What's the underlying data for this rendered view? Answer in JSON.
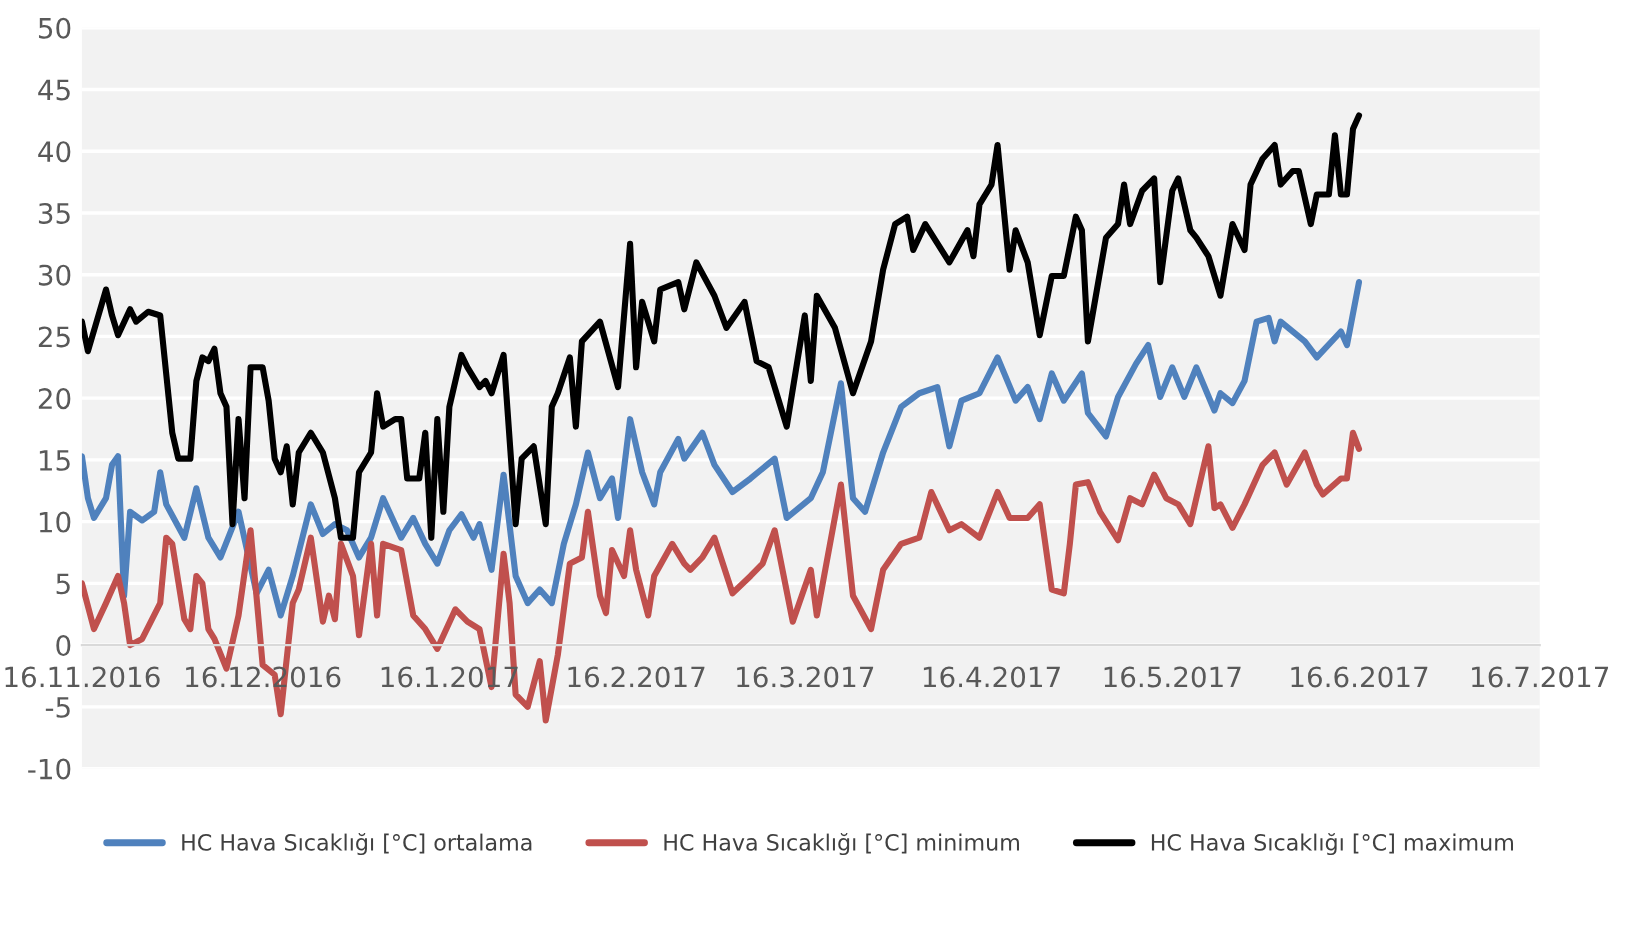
{
  "chart_data": {
    "type": "line",
    "xlim": [
      "2016-11-16",
      "2017-07-16"
    ],
    "xticks": [
      {
        "value": "2016-11-16",
        "label": "16.11.2016"
      },
      {
        "value": "2016-12-16",
        "label": "16.12.2016"
      },
      {
        "value": "2017-01-16",
        "label": "16.1.2017"
      },
      {
        "value": "2017-02-16",
        "label": "16.2.2017"
      },
      {
        "value": "2017-03-16",
        "label": "16.3.2017"
      },
      {
        "value": "2017-04-16",
        "label": "16.4.2017"
      },
      {
        "value": "2017-05-16",
        "label": "16.5.2017"
      },
      {
        "value": "2017-06-16",
        "label": "16.6.2017"
      },
      {
        "value": "2017-07-16",
        "label": "16.7.2017"
      }
    ],
    "ylim": [
      -10,
      50
    ],
    "yticks": [
      -10,
      -5,
      0,
      5,
      10,
      15,
      20,
      25,
      30,
      35,
      40,
      45,
      50
    ],
    "grid": "y",
    "legend": "bottom",
    "marker": "none",
    "line_style": "solid",
    "series": [
      {
        "name": "HC Hava Sıcaklığı [°C] ortalama",
        "color": "#4f81bd",
        "x": [
          "2016-11-16",
          "2016-11-17",
          "2016-11-18",
          "2016-11-20",
          "2016-11-21",
          "2016-11-22",
          "2016-11-23",
          "2016-11-24",
          "2016-11-26",
          "2016-11-28",
          "2016-11-29",
          "2016-11-30",
          "2016-12-03",
          "2016-12-05",
          "2016-12-07",
          "2016-12-09",
          "2016-12-12",
          "2016-12-15",
          "2016-12-17",
          "2016-12-19",
          "2016-12-21",
          "2016-12-24",
          "2016-12-26",
          "2016-12-28",
          "2016-12-30",
          "2017-01-01",
          "2017-01-03",
          "2017-01-05",
          "2017-01-08",
          "2017-01-10",
          "2017-01-12",
          "2017-01-14",
          "2017-01-16",
          "2017-01-18",
          "2017-01-20",
          "2017-01-21",
          "2017-01-23",
          "2017-01-25",
          "2017-01-27",
          "2017-01-29",
          "2017-01-31",
          "2017-02-02",
          "2017-02-04",
          "2017-02-06",
          "2017-02-08",
          "2017-02-10",
          "2017-02-12",
          "2017-02-13",
          "2017-02-15",
          "2017-02-17",
          "2017-02-19",
          "2017-02-20",
          "2017-02-23",
          "2017-02-24",
          "2017-02-27",
          "2017-03-01",
          "2017-03-04",
          "2017-03-07",
          "2017-03-11",
          "2017-03-13",
          "2017-03-17",
          "2017-03-19",
          "2017-03-22",
          "2017-03-24",
          "2017-03-26",
          "2017-03-29",
          "2017-04-01",
          "2017-04-04",
          "2017-04-07",
          "2017-04-09",
          "2017-04-11",
          "2017-04-14",
          "2017-04-17",
          "2017-04-20",
          "2017-04-22",
          "2017-04-24",
          "2017-04-26",
          "2017-04-28",
          "2017-05-01",
          "2017-05-02",
          "2017-05-05",
          "2017-05-07",
          "2017-05-10",
          "2017-05-12",
          "2017-05-14",
          "2017-05-16",
          "2017-05-18",
          "2017-05-20",
          "2017-05-23",
          "2017-05-24",
          "2017-05-26",
          "2017-05-28",
          "2017-05-30",
          "2017-06-01",
          "2017-06-02",
          "2017-06-03",
          "2017-06-07",
          "2017-06-09",
          "2017-06-13",
          "2017-06-14",
          "2017-06-16"
        ],
        "values": [
          15.3,
          11.9,
          10.3,
          11.9,
          14.6,
          15.3,
          4,
          10.8,
          10.1,
          10.8,
          14,
          11.4,
          8.7,
          12.7,
          8.7,
          7.1,
          10.8,
          4.2,
          6.1,
          2.4,
          5.6,
          11.4,
          9,
          9.8,
          9.3,
          7.1,
          8.7,
          11.9,
          8.7,
          10.3,
          8.2,
          6.6,
          9.3,
          10.6,
          8.7,
          9.8,
          6.1,
          13.8,
          5.6,
          3.4,
          4.5,
          3.4,
          8.2,
          11.4,
          15.6,
          11.9,
          13.5,
          10.3,
          18.3,
          14,
          11.4,
          14,
          16.7,
          15.1,
          17.2,
          14.6,
          12.4,
          13.5,
          15.1,
          10.3,
          11.9,
          14,
          21.2,
          11.9,
          10.8,
          15.6,
          19.3,
          20.4,
          20.9,
          16.1,
          19.8,
          20.4,
          23.3,
          19.8,
          20.9,
          18.3,
          22,
          19.8,
          22,
          18.8,
          16.9,
          20.1,
          22.8,
          24.3,
          20.1,
          22.5,
          20.1,
          22.5,
          19,
          20.4,
          19.6,
          21.4,
          26.2,
          26.5,
          24.6,
          26.2,
          24.6,
          23.3,
          25.4,
          24.3,
          29.4
        ]
      },
      {
        "name": "HC Hava Sıcaklığı [°C] minimum",
        "color": "#c0504d",
        "x": [
          "2016-11-16",
          "2016-11-18",
          "2016-11-20",
          "2016-11-22",
          "2016-11-23",
          "2016-11-24",
          "2016-11-26",
          "2016-11-29",
          "2016-11-30",
          "2016-12-01",
          "2016-12-03",
          "2016-12-04",
          "2016-12-05",
          "2016-12-06",
          "2016-12-07",
          "2016-12-08",
          "2016-12-10",
          "2016-12-12",
          "2016-12-14",
          "2016-12-16",
          "2016-12-18",
          "2016-12-19",
          "2016-12-21",
          "2016-12-22",
          "2016-12-24",
          "2016-12-26",
          "2016-12-27",
          "2016-12-28",
          "2016-12-29",
          "2016-12-31",
          "2017-01-01",
          "2017-01-03",
          "2017-01-04",
          "2017-01-05",
          "2017-01-08",
          "2017-01-10",
          "2017-01-12",
          "2017-01-14",
          "2017-01-17",
          "2017-01-19",
          "2017-01-21",
          "2017-01-23",
          "2017-01-25",
          "2017-01-26",
          "2017-01-27",
          "2017-01-29",
          "2017-01-31",
          "2017-02-01",
          "2017-02-03",
          "2017-02-05",
          "2017-02-07",
          "2017-02-08",
          "2017-02-10",
          "2017-02-11",
          "2017-02-12",
          "2017-02-14",
          "2017-02-15",
          "2017-02-16",
          "2017-02-18",
          "2017-02-19",
          "2017-02-22",
          "2017-02-24",
          "2017-02-25",
          "2017-02-27",
          "2017-03-01",
          "2017-03-04",
          "2017-03-07",
          "2017-03-09",
          "2017-03-11",
          "2017-03-14",
          "2017-03-17",
          "2017-03-18",
          "2017-03-22",
          "2017-03-24",
          "2017-03-27",
          "2017-03-29",
          "2017-04-01",
          "2017-04-04",
          "2017-04-06",
          "2017-04-09",
          "2017-04-11",
          "2017-04-14",
          "2017-04-17",
          "2017-04-19",
          "2017-04-22",
          "2017-04-24",
          "2017-04-26",
          "2017-04-28",
          "2017-04-29",
          "2017-04-30",
          "2017-05-02",
          "2017-05-04",
          "2017-05-07",
          "2017-05-09",
          "2017-05-11",
          "2017-05-13",
          "2017-05-15",
          "2017-05-17",
          "2017-05-19",
          "2017-05-22",
          "2017-05-23",
          "2017-05-24",
          "2017-05-26",
          "2017-05-28",
          "2017-05-31",
          "2017-06-02",
          "2017-06-04",
          "2017-06-07",
          "2017-06-09",
          "2017-06-10",
          "2017-06-13",
          "2017-06-14",
          "2017-06-15",
          "2017-06-16"
        ],
        "values": [
          5,
          1.3,
          3.4,
          5.6,
          3.4,
          0,
          0.5,
          3.4,
          8.7,
          8.2,
          2.1,
          1.3,
          5.6,
          5,
          1.3,
          0.5,
          -1.9,
          2.4,
          9.3,
          -1.6,
          -2.4,
          -5.6,
          3.4,
          4.5,
          8.7,
          1.9,
          4,
          2.1,
          8.2,
          5.6,
          0.8,
          8.2,
          2.4,
          8.2,
          7.7,
          2.4,
          1.3,
          -0.3,
          2.9,
          1.9,
          1.3,
          -3.4,
          7.4,
          3.4,
          -4,
          -5,
          -1.3,
          -6.1,
          -0.8,
          6.6,
          7.1,
          10.8,
          4,
          2.6,
          7.7,
          5.6,
          9.3,
          6.1,
          2.4,
          5.6,
          8.2,
          6.6,
          6.1,
          7.1,
          8.7,
          4.2,
          5.6,
          6.6,
          9.3,
          1.9,
          6.1,
          2.4,
          13,
          4,
          1.3,
          6.1,
          8.2,
          8.7,
          12.4,
          9.3,
          9.8,
          8.7,
          12.4,
          10.3,
          10.3,
          11.4,
          4.5,
          4.2,
          8.2,
          13,
          13.2,
          10.8,
          8.5,
          11.9,
          11.4,
          13.8,
          11.9,
          11.4,
          9.8,
          16.1,
          11.1,
          11.4,
          9.5,
          11.4,
          14.6,
          15.6,
          13,
          15.6,
          13,
          12.2,
          13.5,
          13.5,
          17.2,
          15.9
        ]
      },
      {
        "name": "HC Hava Sıcaklığı [°C] maximum",
        "color": "#000000",
        "x": [
          "2016-11-16",
          "2016-11-17",
          "2016-11-20",
          "2016-11-21",
          "2016-11-22",
          "2016-11-24",
          "2016-11-25",
          "2016-11-27",
          "2016-11-29",
          "2016-12-01",
          "2016-12-02",
          "2016-12-04",
          "2016-12-05",
          "2016-12-06",
          "2016-12-07",
          "2016-12-08",
          "2016-12-09",
          "2016-12-10",
          "2016-12-11",
          "2016-12-12",
          "2016-12-13",
          "2016-12-14",
          "2016-12-16",
          "2016-12-17",
          "2016-12-18",
          "2016-12-19",
          "2016-12-20",
          "2016-12-21",
          "2016-12-22",
          "2016-12-24",
          "2016-12-26",
          "2016-12-28",
          "2016-12-29",
          "2016-12-31",
          "2017-01-01",
          "2017-01-03",
          "2017-01-04",
          "2017-01-05",
          "2017-01-07",
          "2017-01-08",
          "2017-01-09",
          "2017-01-11",
          "2017-01-12",
          "2017-01-13",
          "2017-01-14",
          "2017-01-15",
          "2017-01-16",
          "2017-01-18",
          "2017-01-19",
          "2017-01-21",
          "2017-01-22",
          "2017-01-23",
          "2017-01-25",
          "2017-01-27",
          "2017-01-28",
          "2017-01-30",
          "2017-02-01",
          "2017-02-02",
          "2017-02-03",
          "2017-02-05",
          "2017-02-06",
          "2017-02-07",
          "2017-02-10",
          "2017-02-13",
          "2017-02-15",
          "2017-02-16",
          "2017-02-17",
          "2017-02-19",
          "2017-02-20",
          "2017-02-23",
          "2017-02-24",
          "2017-02-26",
          "2017-03-01",
          "2017-03-03",
          "2017-03-06",
          "2017-03-08",
          "2017-03-10",
          "2017-03-13",
          "2017-03-16",
          "2017-03-17",
          "2017-03-18",
          "2017-03-21",
          "2017-03-24",
          "2017-03-27",
          "2017-03-29",
          "2017-03-31",
          "2017-04-02",
          "2017-04-03",
          "2017-04-05",
          "2017-04-09",
          "2017-04-12",
          "2017-04-13",
          "2017-04-14",
          "2017-04-16",
          "2017-04-17",
          "2017-04-19",
          "2017-04-20",
          "2017-04-22",
          "2017-04-24",
          "2017-04-26",
          "2017-04-28",
          "2017-04-30",
          "2017-05-01",
          "2017-05-02",
          "2017-05-05",
          "2017-05-07",
          "2017-05-08",
          "2017-05-09",
          "2017-05-11",
          "2017-05-13",
          "2017-05-14",
          "2017-05-16",
          "2017-05-17",
          "2017-05-19",
          "2017-05-20",
          "2017-05-22",
          "2017-05-24",
          "2017-05-26",
          "2017-05-28",
          "2017-05-29",
          "2017-05-31",
          "2017-06-02",
          "2017-06-03",
          "2017-06-05",
          "2017-06-06",
          "2017-06-08",
          "2017-06-09",
          "2017-06-11",
          "2017-06-12",
          "2017-06-13",
          "2017-06-14",
          "2017-06-15",
          "2017-06-16"
        ],
        "values": [
          26.2,
          23.8,
          28.8,
          26.7,
          25.1,
          27.2,
          26.2,
          27,
          26.7,
          17.2,
          15.1,
          15.1,
          21.4,
          23.3,
          23,
          24,
          20.4,
          19.3,
          9.8,
          18.3,
          11.9,
          22.5,
          22.5,
          19.8,
          15.1,
          14,
          16.1,
          11.4,
          15.6,
          17.2,
          15.6,
          11.9,
          8.7,
          8.7,
          14,
          15.6,
          20.4,
          17.7,
          18.3,
          18.3,
          13.5,
          13.5,
          17.2,
          8.7,
          18.3,
          10.8,
          19.3,
          23.5,
          22.5,
          20.9,
          21.4,
          20.4,
          23.5,
          9.8,
          15.1,
          16.1,
          9.8,
          19.3,
          20.4,
          23.3,
          17.7,
          24.6,
          26.2,
          20.9,
          32.5,
          22.5,
          27.8,
          24.6,
          28.8,
          29.4,
          27.2,
          31,
          28.3,
          25.7,
          27.8,
          23,
          22.5,
          17.7,
          26.7,
          21.4,
          28.3,
          25.7,
          20.4,
          24.6,
          30.4,
          34.1,
          34.7,
          32,
          34.1,
          31,
          33.6,
          31.5,
          35.7,
          37.3,
          40.5,
          30.4,
          33.6,
          31,
          25.1,
          29.9,
          29.9,
          34.7,
          33.6,
          24.6,
          33,
          34.1,
          37.3,
          34.1,
          36.8,
          37.8,
          29.4,
          36.8,
          37.8,
          33.6,
          33,
          31.5,
          28.3,
          34.1,
          32,
          37.3,
          39.4,
          40.5,
          37.3,
          38.4,
          38.4,
          34.1,
          36.5,
          36.5,
          41.3,
          36.5,
          36.5,
          41.8,
          42.9
        ]
      }
    ]
  }
}
